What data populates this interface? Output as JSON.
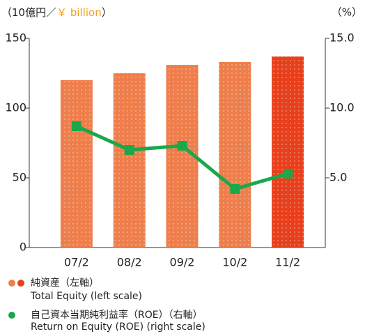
{
  "chart_data": {
    "type": "bar_line",
    "unit_left": {
      "open": "（10億円／",
      "currency": "￥ billion",
      "close": "）"
    },
    "unit_right": "（%）",
    "categories": [
      "07/2",
      "08/2",
      "09/2",
      "10/2",
      "11/2"
    ],
    "series": [
      {
        "name": "Total Equity (left scale)",
        "name_ja": "純資産（左軸）",
        "type": "bar",
        "color": "#ee7f4c",
        "colors": [
          "#ee7f4c",
          "#ee7f4c",
          "#ee7f4c",
          "#ee7f4c",
          "#e8401c"
        ],
        "values": [
          120,
          125,
          131,
          133,
          137
        ]
      },
      {
        "name": "Return on Equity (ROE) (right scale)",
        "name_ja": "自己資本当期純利益率（ROE）（右軸）",
        "type": "line",
        "axis": "y2",
        "color": "#1aa84a",
        "values": [
          8.7,
          7.0,
          7.3,
          4.2,
          5.3
        ]
      }
    ],
    "ylim": [
      0,
      150
    ],
    "yticks": [
      0,
      50,
      100,
      150
    ],
    "y2lim": [
      0,
      15
    ],
    "y2ticks": [
      {
        "value": 5,
        "label": "5.0"
      },
      {
        "value": 10,
        "label": "10.0"
      },
      {
        "value": 15,
        "label": "15.0"
      }
    ],
    "legend_text_color": "#e8401c"
  }
}
